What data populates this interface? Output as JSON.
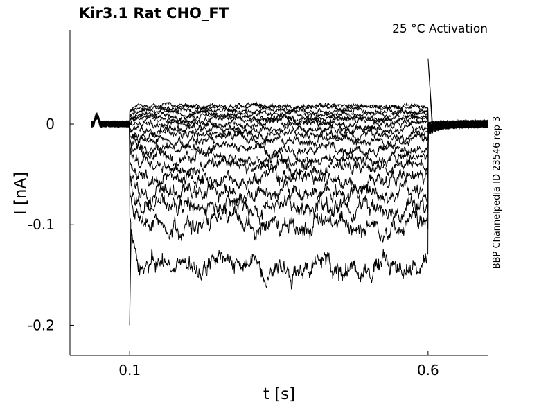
{
  "chart_data": {
    "type": "line",
    "title": "Kir3.1  Rat  CHO_FT",
    "subtitle": "25 °C  Activation",
    "side_label": "BBP Channelpedia ID 23546 rep 3",
    "xlabel": "t [s]",
    "ylabel": "I [nA]",
    "xlim": [
      0.0,
      0.7
    ],
    "ylim": [
      -0.23,
      0.093
    ],
    "xticks": [
      {
        "value": 0.1,
        "label": "0.1"
      },
      {
        "value": 0.6,
        "label": "0.6"
      }
    ],
    "yticks": [
      {
        "value": 0,
        "label": "0"
      },
      {
        "value": -0.1,
        "label": "-0.1"
      },
      {
        "value": -0.2,
        "label": "-0.2"
      }
    ],
    "grid": false,
    "line_color": "#000000",
    "step_start": 0.1,
    "step_end": 0.6,
    "onset_spike_min": -0.2,
    "offset_spike_max": 0.065,
    "steady_state_levels": [
      0.018,
      0.016,
      0.013,
      0.01,
      0.007,
      0.004,
      0.0,
      -0.005,
      -0.01,
      -0.016,
      -0.024,
      -0.033,
      -0.043,
      -0.055,
      -0.068,
      -0.082,
      -0.1,
      -0.14
    ]
  }
}
